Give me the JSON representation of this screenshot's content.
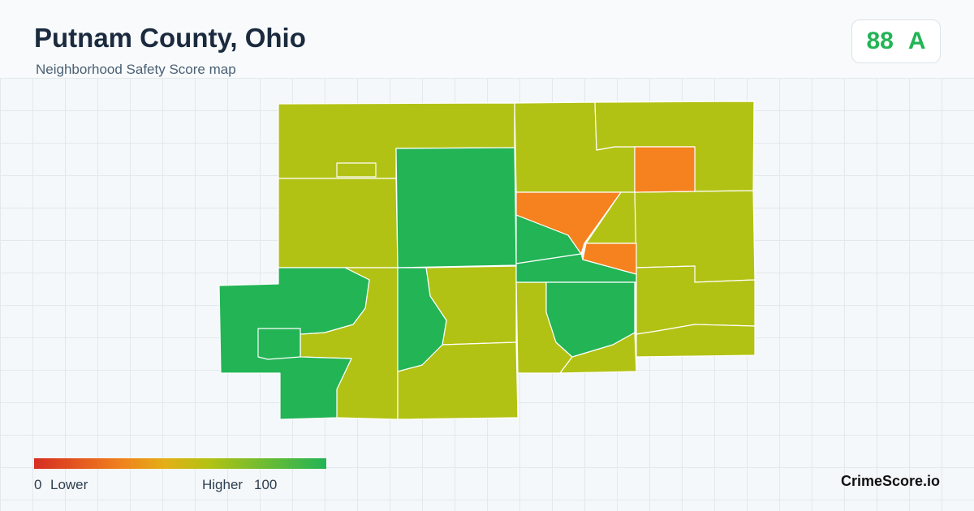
{
  "header": {
    "title": "Putnam County, Ohio",
    "subtitle": "Neighborhood Safety Score map"
  },
  "score": {
    "value": 88,
    "grade": "A"
  },
  "legend": {
    "min": 0,
    "min_label": "Lower",
    "max_label": "Higher",
    "max": 100
  },
  "brand": "CrimeScore.io"
}
